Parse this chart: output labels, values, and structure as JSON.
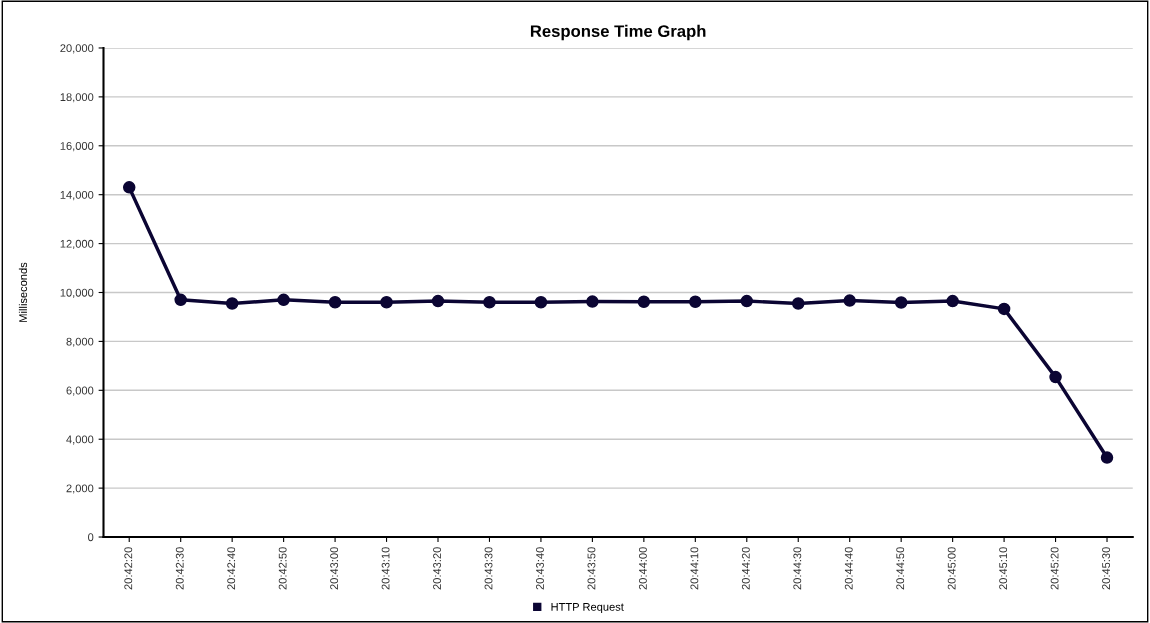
{
  "chart_data": {
    "type": "line",
    "title": "Response Time Graph",
    "ylabel": "Milliseconds",
    "categories": [
      "20:42:20",
      "20:42:30",
      "20:42:40",
      "20:42:50",
      "20:43:00",
      "20:43:10",
      "20:43:20",
      "20:43:30",
      "20:43:40",
      "20:43:50",
      "20:44:00",
      "20:44:10",
      "20:44:20",
      "20:44:30",
      "20:44:40",
      "20:44:50",
      "20:45:00",
      "20:45:10",
      "20:45:20",
      "20:45:30"
    ],
    "series": [
      {
        "name": "HTTP Request",
        "color": "#0b0533",
        "values": [
          14300,
          9700,
          9550,
          9700,
          9600,
          9600,
          9650,
          9600,
          9600,
          9630,
          9620,
          9620,
          9650,
          9550,
          9670,
          9590,
          9650,
          9330,
          6540,
          3250
        ]
      }
    ],
    "ylim": [
      0,
      20000
    ],
    "yticks": [
      {
        "value": 0,
        "label": "0"
      },
      {
        "value": 2000,
        "label": "2,000"
      },
      {
        "value": 4000,
        "label": "4,000"
      },
      {
        "value": 6000,
        "label": "6,000"
      },
      {
        "value": 8000,
        "label": "8,000"
      },
      {
        "value": 10000,
        "label": "10,000"
      },
      {
        "value": 12000,
        "label": "12,000"
      },
      {
        "value": 14000,
        "label": "14,000"
      },
      {
        "value": 16000,
        "label": "16,000"
      },
      {
        "value": 18000,
        "label": "18,000"
      },
      {
        "value": 20000,
        "label": "20,000"
      }
    ],
    "grid": "y",
    "legend": "bottom",
    "marker": "circle",
    "line_style": "solid"
  }
}
